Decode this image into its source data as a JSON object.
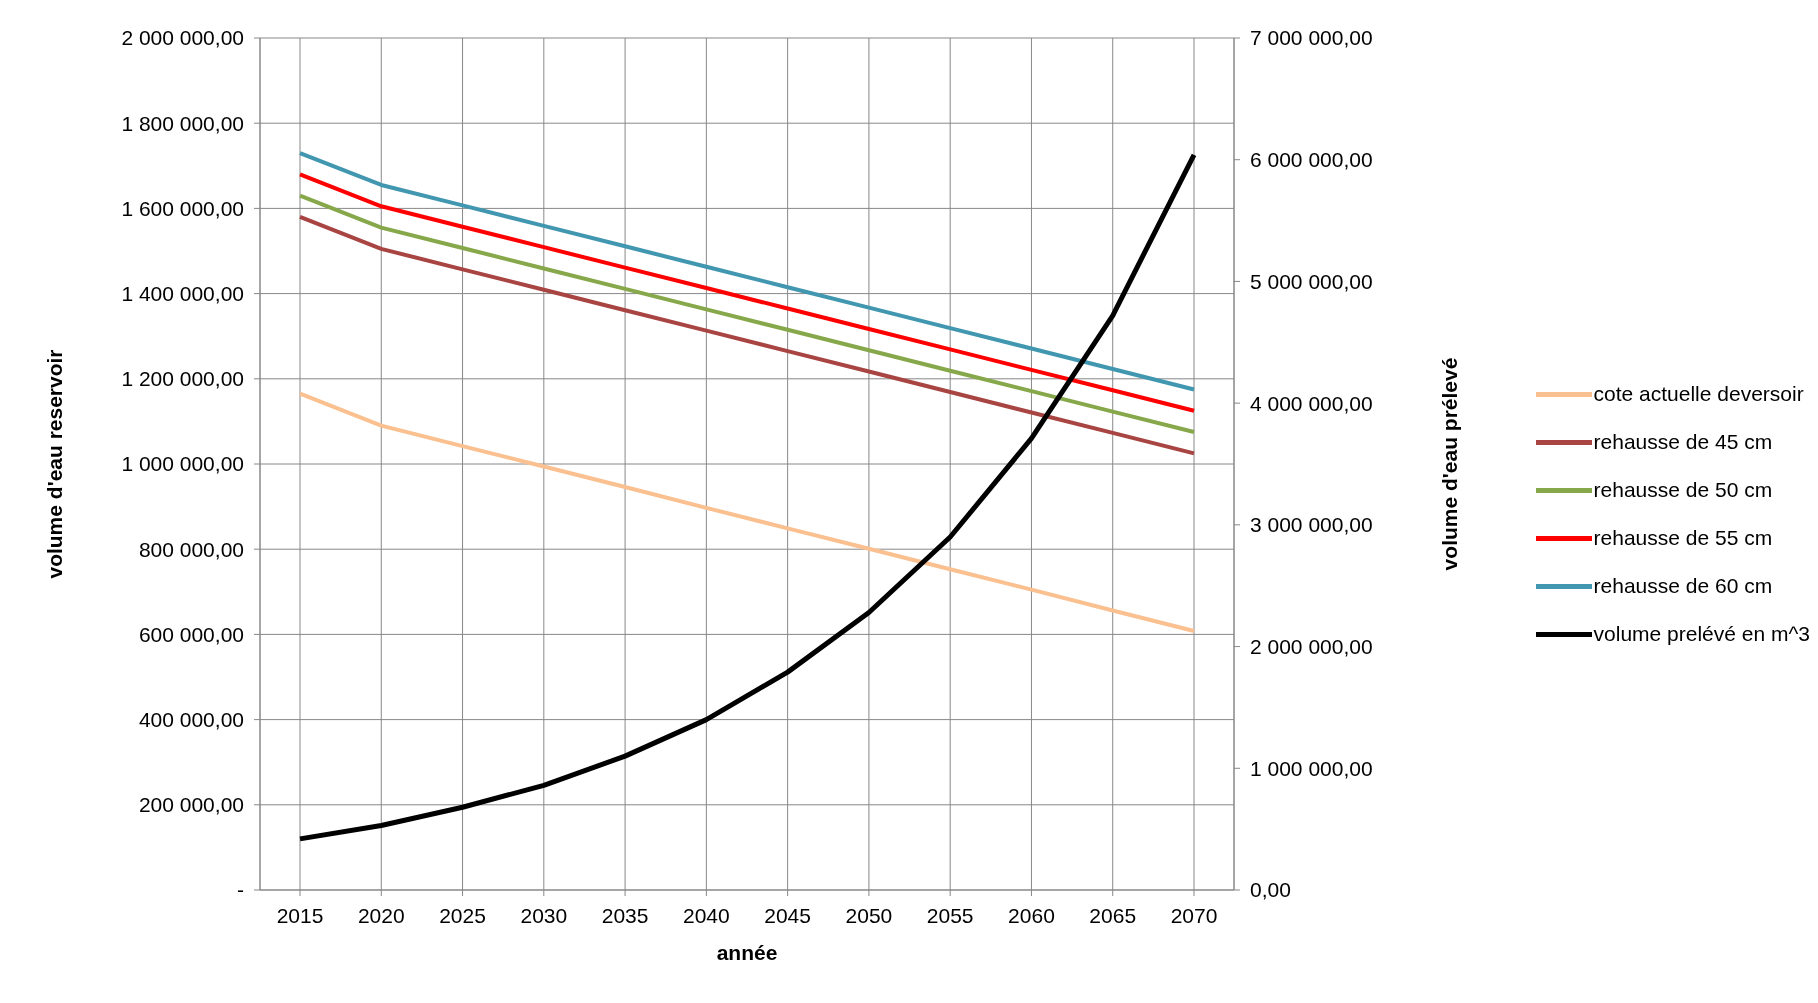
{
  "chart_data": {
    "type": "line",
    "xlabel": "année",
    "ylabel": "volume d'eau reservoir",
    "y2label": "volume d'eau prélevé",
    "categories": [
      "2015",
      "2020",
      "2025",
      "2030",
      "2035",
      "2040",
      "2045",
      "2050",
      "2055",
      "2060",
      "2065",
      "2070"
    ],
    "series": [
      {
        "name": "cote actuelle deversoir",
        "color": "#fac090",
        "values": [
          1165000,
          1090000,
          1042000,
          994000,
          946000,
          897000,
          849000,
          801000,
          753000,
          705000,
          656000,
          608000
        ]
      },
      {
        "name": "rehausse de 45 cm",
        "color": "#a84442",
        "values": [
          1580000,
          1505000,
          1457000,
          1409000,
          1361000,
          1313000,
          1265000,
          1217000,
          1169000,
          1121000,
          1073000,
          1025000
        ]
      },
      {
        "name": "rehausse de 50 cm",
        "color": "#86a84a",
        "values": [
          1630000,
          1555000,
          1507000,
          1459000,
          1411000,
          1363000,
          1315000,
          1267000,
          1219000,
          1171000,
          1123000,
          1075000
        ]
      },
      {
        "name": "rehausse de 55 cm",
        "color": "#ff0000",
        "values": [
          1680000,
          1605000,
          1557000,
          1509000,
          1461000,
          1413000,
          1365000,
          1317000,
          1269000,
          1221000,
          1173000,
          1125000
        ]
      },
      {
        "name": "rehausse de 60 cm",
        "color": "#4197b0",
        "values": [
          1730000,
          1655000,
          1607000,
          1559000,
          1511000,
          1463000,
          1415000,
          1367000,
          1319000,
          1271000,
          1223000,
          1175000
        ]
      },
      {
        "name": "volume prelévé en m^3",
        "color": "#000000",
        "axis": "y2",
        "values": [
          420000,
          530000,
          680000,
          860000,
          1100000,
          1400000,
          1790000,
          2280000,
          2900000,
          3710000,
          4720000,
          6040000
        ]
      }
    ],
    "ylim": [
      0,
      2000000
    ],
    "yticks": [
      {
        "value": 0,
        "label": "-"
      },
      {
        "value": 200000,
        "label": "200 000,00"
      },
      {
        "value": 400000,
        "label": "400 000,00"
      },
      {
        "value": 600000,
        "label": "600 000,00"
      },
      {
        "value": 800000,
        "label": "800 000,00"
      },
      {
        "value": 1000000,
        "label": "1 000 000,00"
      },
      {
        "value": 1200000,
        "label": "1 200 000,00"
      },
      {
        "value": 1400000,
        "label": "1 400 000,00"
      },
      {
        "value": 1600000,
        "label": "1 600 000,00"
      },
      {
        "value": 1800000,
        "label": "1 800 000,00"
      },
      {
        "value": 2000000,
        "label": "2 000 000,00"
      }
    ],
    "y2lim": [
      0,
      7000000
    ],
    "y2ticks": [
      {
        "value": 0,
        "label": "0,00"
      },
      {
        "value": 1000000,
        "label": "1 000 000,00"
      },
      {
        "value": 2000000,
        "label": "2 000 000,00"
      },
      {
        "value": 3000000,
        "label": "3 000 000,00"
      },
      {
        "value": 4000000,
        "label": "4 000 000,00"
      },
      {
        "value": 5000000,
        "label": "5 000 000,00"
      },
      {
        "value": 6000000,
        "label": "6 000 000,00"
      },
      {
        "value": 7000000,
        "label": "7 000 000,00"
      }
    ],
    "grid": true,
    "legend": "right",
    "marker": "none",
    "line_style": "solid"
  }
}
